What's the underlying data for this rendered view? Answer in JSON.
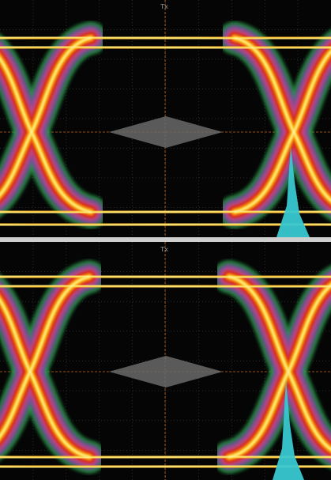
{
  "panels": [
    {
      "marker_label": "Tx"
    },
    {
      "marker_label": "Tx"
    }
  ]
}
